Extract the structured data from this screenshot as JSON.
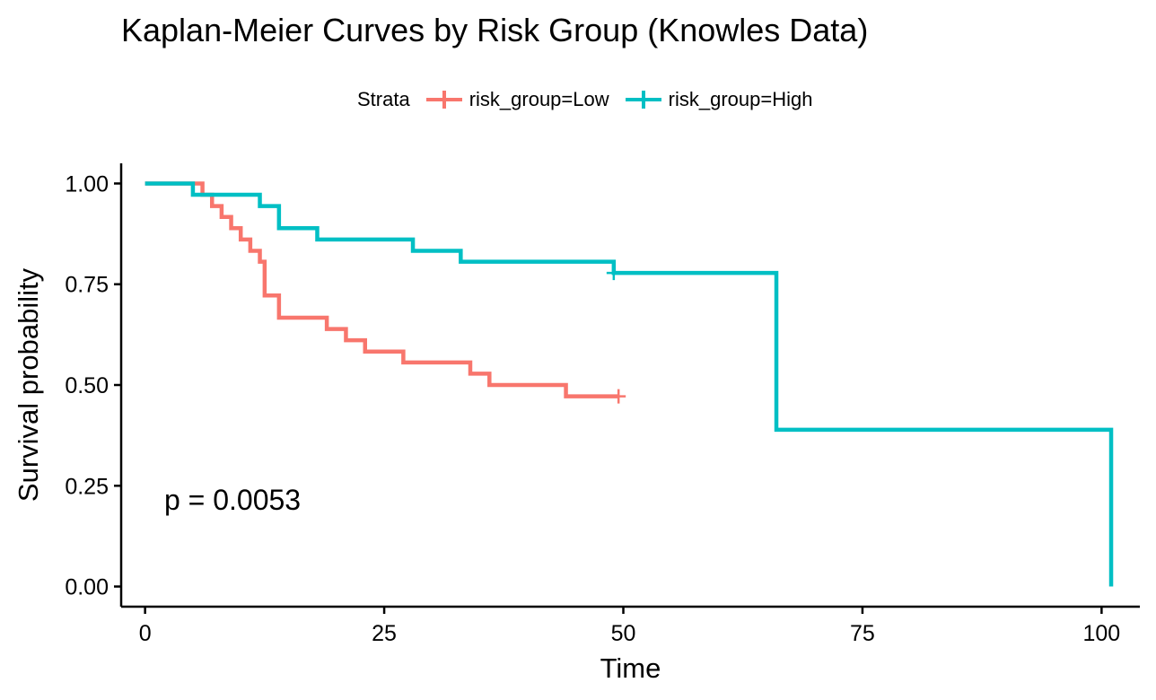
{
  "chart_data": {
    "type": "line",
    "title": "Kaplan-Meier Curves by Risk Group (Knowles Data)",
    "xlabel": "Time",
    "ylabel": "Survival probability",
    "xlim": [
      -2.5,
      104
    ],
    "ylim": [
      -0.05,
      1.05
    ],
    "xticks": [
      0,
      25,
      50,
      75,
      100
    ],
    "xtick_labels": [
      "0",
      "25",
      "50",
      "75",
      "100"
    ],
    "yticks": [
      0,
      0.25,
      0.5,
      0.75,
      1.0
    ],
    "ytick_labels": [
      "0.00",
      "0.25",
      "0.50",
      "0.75",
      "1.00"
    ],
    "grid": false,
    "legend": {
      "title": "Strata",
      "position": "top"
    },
    "annotation": {
      "text": "p = 0.0053",
      "x": 2,
      "y": 0.19
    },
    "series": [
      {
        "name": "risk_group=Low",
        "color": "#F8766D",
        "steps": [
          [
            0,
            1.0
          ],
          [
            6,
            0.972
          ],
          [
            7,
            0.944
          ],
          [
            8,
            0.917
          ],
          [
            9,
            0.889
          ],
          [
            10,
            0.861
          ],
          [
            11,
            0.833
          ],
          [
            12,
            0.806
          ],
          [
            12.5,
            0.722
          ],
          [
            14,
            0.667
          ],
          [
            19,
            0.639
          ],
          [
            21,
            0.611
          ],
          [
            23,
            0.583
          ],
          [
            27,
            0.556
          ],
          [
            34,
            0.528
          ],
          [
            36,
            0.5
          ],
          [
            44,
            0.472
          ],
          [
            49.5,
            0.472
          ]
        ],
        "censored": [
          [
            49.5,
            0.472
          ]
        ]
      },
      {
        "name": "risk_group=High",
        "color": "#00BFC4",
        "steps": [
          [
            0,
            1.0
          ],
          [
            5,
            0.972
          ],
          [
            12,
            0.944
          ],
          [
            14,
            0.889
          ],
          [
            18,
            0.861
          ],
          [
            28,
            0.833
          ],
          [
            33,
            0.806
          ],
          [
            49,
            0.778
          ],
          [
            66,
            0.389
          ],
          [
            101,
            0.0
          ]
        ],
        "censored": [
          [
            49,
            0.778
          ]
        ]
      }
    ]
  }
}
